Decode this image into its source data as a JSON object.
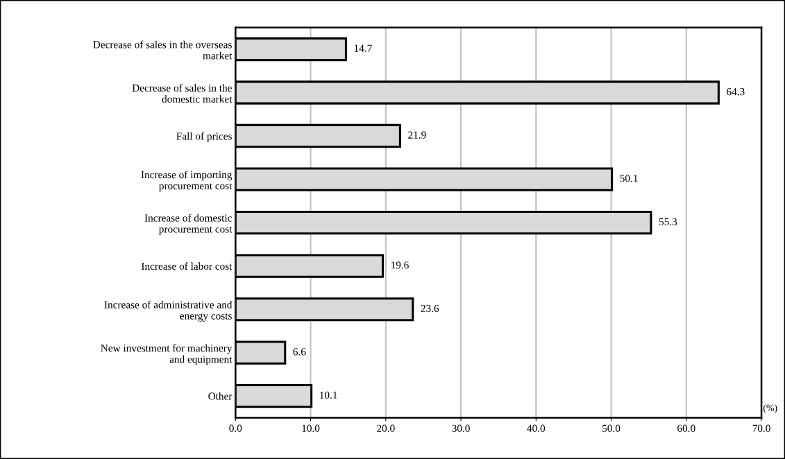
{
  "chart_data": {
    "type": "bar",
    "orientation": "horizontal",
    "categories": [
      "Decrease of sales in the overseas\nmarket",
      "Decrease of sales in the\ndomestic market",
      "Fall of prices",
      "Increase of importing\nprocurement cost",
      "Increase of domestic\nprocurement cost",
      "Increase of labor cost",
      "Increase of administrative and\nenergy costs",
      "New investment for machinery\nand equipment",
      "Other"
    ],
    "values": [
      14.7,
      64.3,
      21.9,
      50.1,
      55.3,
      19.6,
      23.6,
      6.6,
      10.1
    ],
    "color": "#d9d9d9",
    "xlim": [
      0,
      70
    ],
    "xticks": [
      {
        "value": 0,
        "label": "0.0"
      },
      {
        "value": 10,
        "label": "10.0"
      },
      {
        "value": 20,
        "label": "20.0"
      },
      {
        "value": 30,
        "label": "30.0"
      },
      {
        "value": 40,
        "label": "40.0"
      },
      {
        "value": 50,
        "label": "50.0"
      },
      {
        "value": 60,
        "label": "60.0"
      },
      {
        "value": 70,
        "label": "70.0"
      }
    ],
    "grid": "x",
    "data_labels": true,
    "annotations": [
      "(%)"
    ]
  }
}
